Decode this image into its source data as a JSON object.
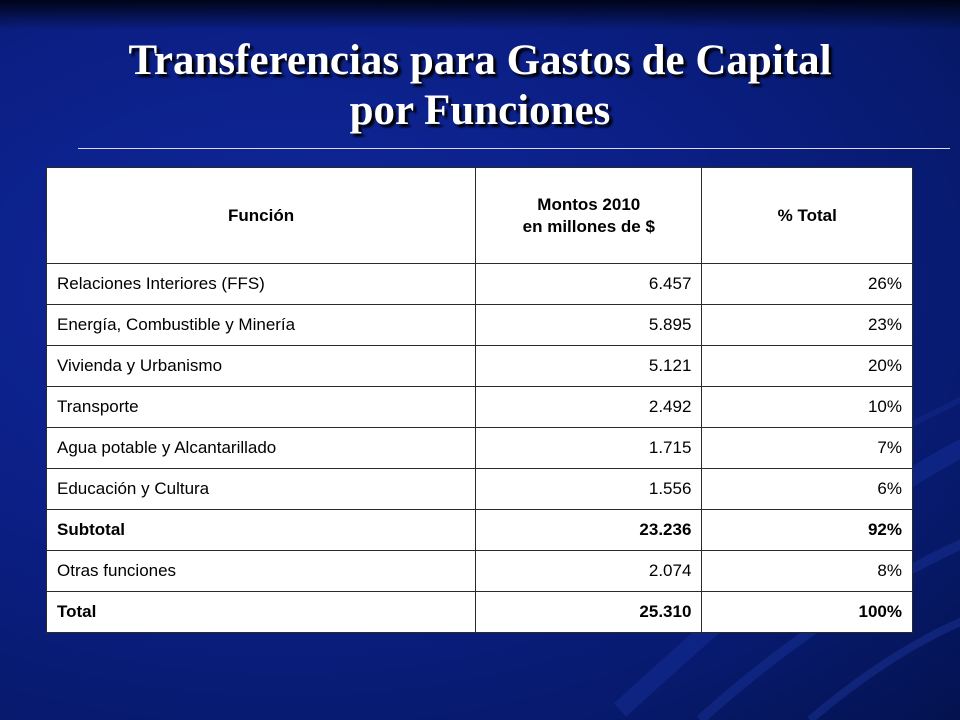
{
  "slide": {
    "title_line1": "Transferencias para Gastos de Capital",
    "title_line2": "por Funciones"
  },
  "table": {
    "headers": {
      "funcion": "Función",
      "montos_line1": "Montos 2010",
      "montos_line2": "en millones de $",
      "pct": "% Total"
    },
    "rows": [
      {
        "funcion": "Relaciones Interiores (FFS)",
        "monto": "6.457",
        "pct": "26%",
        "bold": false
      },
      {
        "funcion": "Energía, Combustible y Minería",
        "monto": "5.895",
        "pct": "23%",
        "bold": false
      },
      {
        "funcion": "Vivienda y Urbanismo",
        "monto": "5.121",
        "pct": "20%",
        "bold": false
      },
      {
        "funcion": "Transporte",
        "monto": "2.492",
        "pct": "10%",
        "bold": false
      },
      {
        "funcion": "Agua potable y Alcantarillado",
        "monto": "1.715",
        "pct": "7%",
        "bold": false
      },
      {
        "funcion": "Educación y Cultura",
        "monto": "1.556",
        "pct": "6%",
        "bold": false
      },
      {
        "funcion": "Subtotal",
        "monto": "23.236",
        "pct": "92%",
        "bold": true
      },
      {
        "funcion": "Otras funciones",
        "monto": "2.074",
        "pct": "8%",
        "bold": false
      },
      {
        "funcion": "Total",
        "monto": "25.310",
        "pct": "100%",
        "bold": true
      }
    ]
  }
}
